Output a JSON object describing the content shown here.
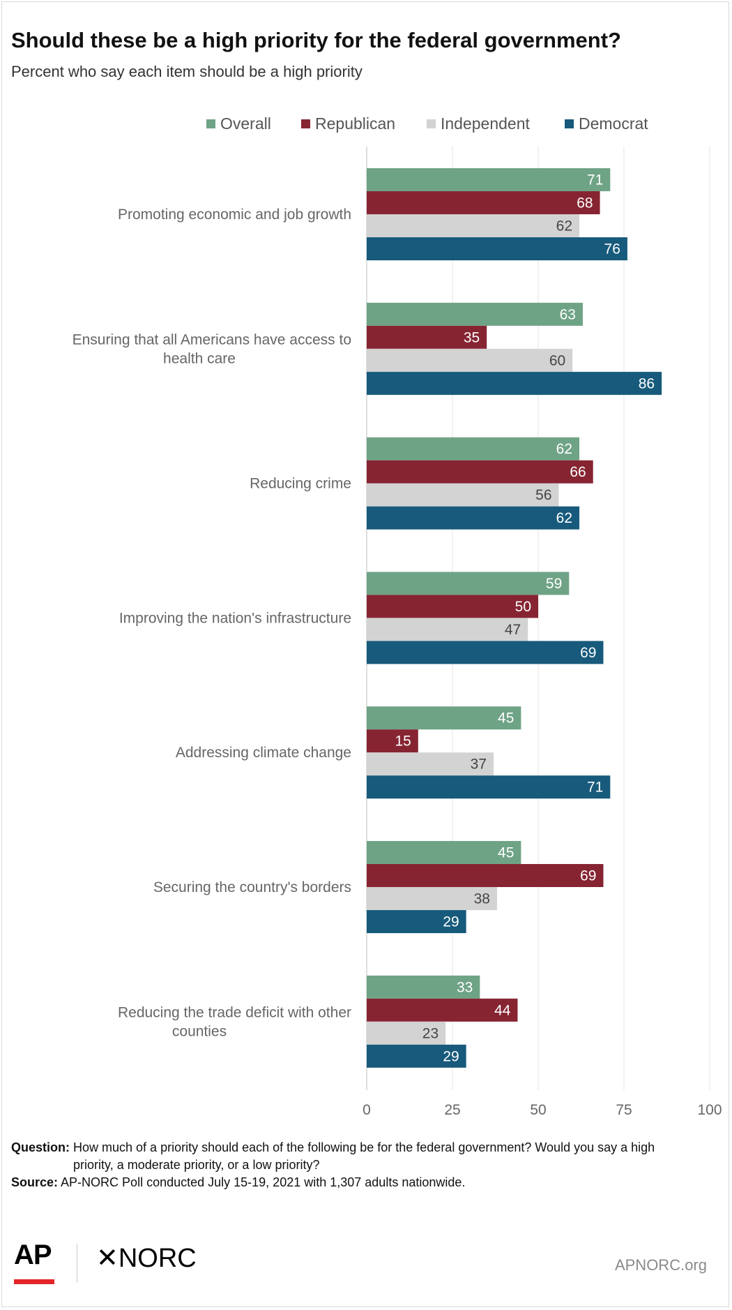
{
  "header": {
    "title": "Should these be a high priority for the federal government?",
    "subtitle": "Percent who say each item should be a high priority"
  },
  "legend": [
    {
      "name": "Overall",
      "color": "#6fa386"
    },
    {
      "name": "Republican",
      "color": "#862432"
    },
    {
      "name": "Independent",
      "color": "#d3d3d3"
    },
    {
      "name": "Democrat",
      "color": "#175a7b"
    }
  ],
  "chart_data": {
    "type": "bar",
    "orientation": "horizontal",
    "title": "Should these be a high priority for the federal government?",
    "subtitle": "Percent who say each item should be a high priority",
    "categories": [
      "Promoting economic and job growth",
      "Ensuring that all Americans have access to health care",
      "Reducing crime",
      "Improving the nation's infrastructure",
      "Addressing climate change",
      "Securing the country's borders",
      "Reducing the trade deficit with other counties"
    ],
    "series": [
      {
        "name": "Overall",
        "color": "#6fa386",
        "values": [
          71,
          63,
          62,
          59,
          45,
          45,
          33
        ]
      },
      {
        "name": "Republican",
        "color": "#862432",
        "values": [
          68,
          35,
          66,
          50,
          15,
          69,
          44
        ]
      },
      {
        "name": "Independent",
        "color": "#d3d3d3",
        "values": [
          62,
          60,
          56,
          47,
          37,
          38,
          23
        ]
      },
      {
        "name": "Democrat",
        "color": "#175a7b",
        "values": [
          76,
          86,
          62,
          69,
          71,
          29,
          29
        ]
      }
    ],
    "xlim": [
      0,
      100
    ],
    "xticks": [
      0,
      25,
      50,
      75,
      100
    ],
    "grid": true,
    "legend_position": "top-right",
    "data_labels": true
  },
  "notes": {
    "question_label": "Question:",
    "question_text": "How much of a priority should each of the following be for the federal government? Would you say a high priority, a moderate priority, or a low priority?",
    "source_label": "Source:",
    "source_text": "AP-NORC Poll conducted July 15-19, 2021 with 1,307 adults nationwide."
  },
  "footer": {
    "ap_logo": "AP",
    "norc_logo": "✕NORC",
    "site": "APNORC.org"
  }
}
